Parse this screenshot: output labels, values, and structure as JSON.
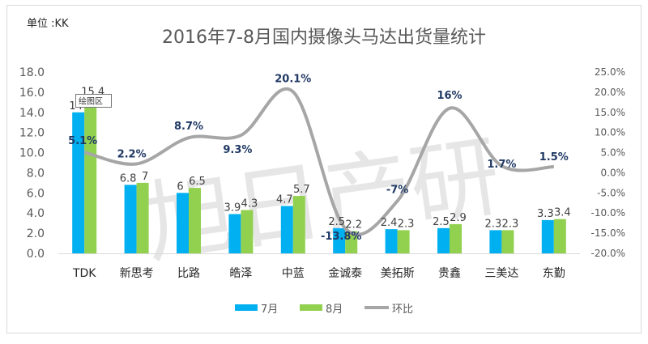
{
  "unit_label": "单位 :KK",
  "watermark": "旭日产研",
  "tooltip": "绘图区",
  "colors": {
    "jul": "#00b0f0",
    "aug": "#92d050",
    "ratio": "#a6a6a6",
    "ratio_label": "#1f3864",
    "axis_text": "#595959",
    "title": "#595959"
  },
  "chart_data": {
    "type": "bar+line",
    "title": "2016年7-8月国内摄像头马达出货量统计",
    "categories": [
      "TDK",
      "新思考",
      "比路",
      "皓泽",
      "中蓝",
      "金诚泰",
      "美拓斯",
      "贵鑫",
      "三美达",
      "东勤"
    ],
    "series": [
      {
        "name": "7月",
        "type": "bar",
        "axis": "left",
        "values": [
          14,
          6.8,
          6,
          3.9,
          4.7,
          2.5,
          2.4,
          2.5,
          2.3,
          3.3
        ],
        "labels": [
          "14",
          "6.8",
          "6",
          "3.9",
          "4.7",
          "2.5",
          "2.4",
          "2.5",
          "2.3",
          "3.3"
        ]
      },
      {
        "name": "8月",
        "type": "bar",
        "axis": "left",
        "values": [
          15.4,
          7,
          6.5,
          4.3,
          5.7,
          2.2,
          2.3,
          2.9,
          2.3,
          3.4
        ],
        "labels": [
          "15.4",
          "7",
          "6.5",
          "4.3",
          "5.7",
          "2.2",
          "2.3",
          "2.9",
          "2.3",
          "3.4"
        ]
      },
      {
        "name": "环比",
        "type": "line",
        "axis": "right",
        "values": [
          5.1,
          2.2,
          8.7,
          9.3,
          20.1,
          -13.8,
          -7,
          16,
          1.7,
          1.5
        ],
        "labels": [
          "5.1%",
          "2.2%",
          "8.7%",
          "9.3%",
          "20.1%",
          "-13.8%",
          "-7%",
          "16%",
          "1.7%",
          "1.5%"
        ]
      }
    ],
    "left_axis": {
      "ylim": [
        0,
        18
      ],
      "ticks": [
        "0.0",
        "2.0",
        "4.0",
        "6.0",
        "8.0",
        "10.0",
        "12.0",
        "14.0",
        "16.0",
        "18.0"
      ]
    },
    "right_axis": {
      "ylim": [
        -20,
        25
      ],
      "ticks": [
        "-20.0%",
        "-15.0%",
        "-10.0%",
        "-5.0%",
        "0.0%",
        "5.0%",
        "10.0%",
        "15.0%",
        "20.0%",
        "25.0%"
      ]
    },
    "grid": false,
    "legend": "bottom"
  }
}
